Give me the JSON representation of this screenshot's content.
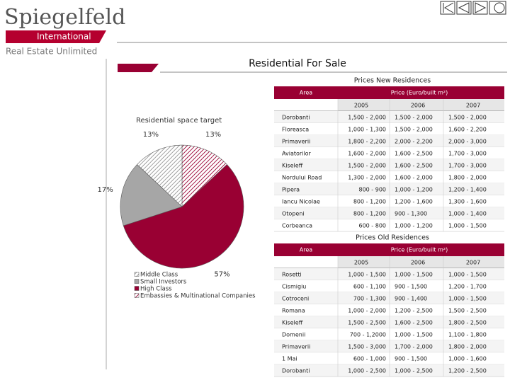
{
  "header": {
    "logo": "Spiegelfeld",
    "logo_sub": "International",
    "tagline": "Real Estate Unlimited"
  },
  "title": "Residential For Sale",
  "chart_data": {
    "type": "pie",
    "title": "Residential space target",
    "categories": [
      "Middle Class",
      "Small Investors",
      "High Class",
      "Embassies & Multinational Companies"
    ],
    "values": [
      13,
      17,
      57,
      13
    ],
    "value_labels": [
      "13%",
      "17%",
      "57%",
      "13%"
    ],
    "colors": [
      "#9a9a9a",
      "#a6a6a6",
      "#990033",
      "#990033"
    ],
    "hatched": [
      true,
      false,
      false,
      true
    ],
    "legend": "bottom-left"
  },
  "tables": [
    {
      "title": "Prices New Residences",
      "header": [
        "Area",
        "Price (Euro/built m²)"
      ],
      "years": [
        "2005",
        "2006",
        "2007"
      ],
      "rows": [
        [
          "Dorobanti",
          "1,500 - 2,000",
          "1,500 - 2,000",
          "1,500 - 2,000"
        ],
        [
          "Floreasca",
          "1,000 - 1,300",
          "1,500 - 2,000",
          "1,600 - 2,200"
        ],
        [
          "Primaverii",
          "1,800 - 2,200",
          "2,000 - 2,200",
          "2,000 - 3,000"
        ],
        [
          "Aviatorilor",
          "1,600 - 2,000",
          "1,600 - 2,500",
          "1,700 - 3,000"
        ],
        [
          "Kiseleff",
          "1,500 - 2,000",
          "1,600 - 2,500",
          "1,700 - 3,000"
        ],
        [
          "Nordului Road",
          "1,300 - 2,000",
          "1,600 - 2,000",
          "1,800 - 2,000"
        ],
        [
          "Pipera",
          "800 - 900",
          "1,000 - 1,200",
          "1,200 - 1,400"
        ],
        [
          "Iancu Nicolae",
          "800 - 1,200",
          "1,200 - 1,600",
          "1,300 - 1,600"
        ],
        [
          "Otopeni",
          "800 - 1,200",
          "900 - 1,300",
          "1,000 - 1,400"
        ],
        [
          "Corbeanca",
          "600 - 800",
          "1,000 - 1,200",
          "1,000 - 1,500"
        ]
      ]
    },
    {
      "title": "Prices Old Residences",
      "header": [
        "Area",
        "Price (Euro/built m²)"
      ],
      "years": [
        "2005",
        "2006",
        "2007"
      ],
      "rows": [
        [
          "Rosetti",
          "1,000 - 1,500",
          "1,000 - 1,500",
          "1,000 - 1,500"
        ],
        [
          "Cismigiu",
          "600 - 1,100",
          "900 - 1,500",
          "1,200 - 1,700"
        ],
        [
          "Cotroceni",
          "700 - 1,300",
          "900 - 1,400",
          "1,000 - 1,500"
        ],
        [
          "Romana",
          "1,000 - 2,000",
          "1,200 - 2,500",
          "1,500 - 2,500"
        ],
        [
          "Kiseleff",
          "1,500 - 2,500",
          "1,600 - 2,500",
          "1,800 - 2,500"
        ],
        [
          "Domenii",
          "700 - 1,2000",
          "1,000 - 1,500",
          "1,100 - 1,800"
        ],
        [
          "Primaverii",
          "1,500 - 3,000",
          "1,700 - 2,000",
          "1,800 - 2,000"
        ],
        [
          "1 Mai",
          "600 - 1,000",
          "900 - 1,500",
          "1,000 - 1,600"
        ],
        [
          "Dorobanti",
          "1,000 - 2,500",
          "1,000 - 2,500",
          "1,200 - 2,500"
        ]
      ]
    }
  ]
}
